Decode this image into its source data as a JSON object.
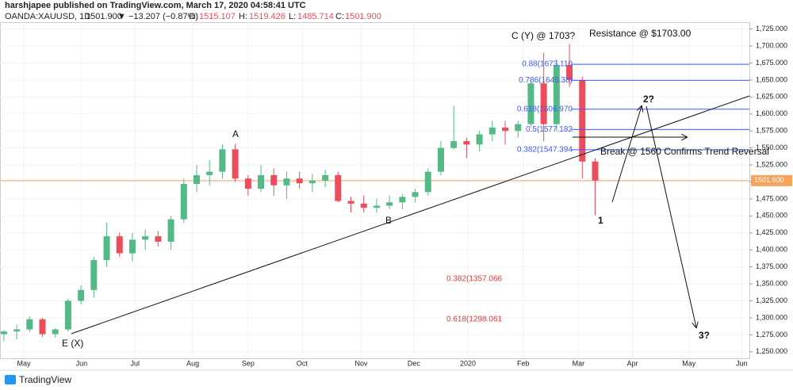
{
  "header": {
    "publisher": "harshjapee published on TradingView.com, March 17, 2020 04:58:41 UTC",
    "symbol": "OANDA:XAUUSD, 1D",
    "price": "1501.900",
    "change": "▼ −13.207 (−0.87%)",
    "ohlc": [
      {
        "label": "O:",
        "value": "1515.107"
      },
      {
        "label": "H:",
        "value": "1519.426"
      },
      {
        "label": "L:",
        "value": "1485.714"
      },
      {
        "label": "C:",
        "value": "1501.900"
      }
    ]
  },
  "footer": {
    "brand": "TradingView"
  },
  "chart_data": {
    "type": "candlestick",
    "up_color": "#53b987",
    "down_color": "#eb4d5c",
    "candles": [
      [
        1276,
        1282,
        1266,
        1280
      ],
      [
        1280,
        1290,
        1268,
        1283
      ],
      [
        1283,
        1302,
        1279,
        1298
      ],
      [
        1298,
        1300,
        1272,
        1276
      ],
      [
        1276,
        1285,
        1271,
        1283
      ],
      [
        1283,
        1328,
        1280,
        1325
      ],
      [
        1325,
        1348,
        1320,
        1341
      ],
      [
        1341,
        1390,
        1330,
        1385
      ],
      [
        1385,
        1440,
        1375,
        1420
      ],
      [
        1420,
        1425,
        1390,
        1395
      ],
      [
        1395,
        1425,
        1383,
        1415
      ],
      [
        1415,
        1430,
        1400,
        1420
      ],
      [
        1420,
        1428,
        1405,
        1412
      ],
      [
        1412,
        1450,
        1400,
        1445
      ],
      [
        1445,
        1505,
        1440,
        1497
      ],
      [
        1497,
        1525,
        1485,
        1510
      ],
      [
        1510,
        1532,
        1495,
        1515
      ],
      [
        1515,
        1555,
        1505,
        1548
      ],
      [
        1548,
        1556,
        1500,
        1505
      ],
      [
        1505,
        1510,
        1480,
        1490
      ],
      [
        1490,
        1525,
        1485,
        1510
      ],
      [
        1510,
        1520,
        1480,
        1495
      ],
      [
        1495,
        1515,
        1475,
        1505
      ],
      [
        1505,
        1515,
        1490,
        1498
      ],
      [
        1498,
        1512,
        1485,
        1502
      ],
      [
        1502,
        1518,
        1492,
        1510
      ],
      [
        1510,
        1515,
        1470,
        1472
      ],
      [
        1472,
        1478,
        1455,
        1468
      ],
      [
        1468,
        1480,
        1455,
        1462
      ],
      [
        1462,
        1475,
        1455,
        1465
      ],
      [
        1465,
        1480,
        1460,
        1470
      ],
      [
        1470,
        1482,
        1460,
        1478
      ],
      [
        1478,
        1490,
        1470,
        1485
      ],
      [
        1485,
        1520,
        1480,
        1515
      ],
      [
        1515,
        1560,
        1510,
        1550
      ],
      [
        1550,
        1612,
        1548,
        1560
      ],
      [
        1560,
        1565,
        1535,
        1555
      ],
      [
        1555,
        1575,
        1545,
        1570
      ],
      [
        1570,
        1590,
        1560,
        1580
      ],
      [
        1580,
        1590,
        1555,
        1575
      ],
      [
        1575,
        1590,
        1565,
        1585
      ],
      [
        1585,
        1650,
        1580,
        1645
      ],
      [
        1645,
        1690,
        1560,
        1585
      ],
      [
        1585,
        1680,
        1575,
        1672
      ],
      [
        1672,
        1703,
        1640,
        1650
      ],
      [
        1650,
        1655,
        1505,
        1530
      ],
      [
        1530,
        1535,
        1451,
        1502
      ]
    ],
    "xlim": [
      -0.3,
      58
    ],
    "xticks": [
      {
        "value": 1.55,
        "label": "May"
      },
      {
        "value": 6.05,
        "label": "Jun"
      },
      {
        "value": 10.2,
        "label": "Jul"
      },
      {
        "value": 14.7,
        "label": "Aug"
      },
      {
        "value": 19,
        "label": "Sep"
      },
      {
        "value": 23.2,
        "label": "Oct"
      },
      {
        "value": 27.8,
        "label": "Nov"
      },
      {
        "value": 31.9,
        "label": "Dec"
      },
      {
        "value": 36.1,
        "label": "2020"
      },
      {
        "value": 40.4,
        "label": "Feb"
      },
      {
        "value": 44.7,
        "label": "Mar"
      },
      {
        "value": 48.9,
        "label": "Apr"
      },
      {
        "value": 53.3,
        "label": "May"
      },
      {
        "value": 57.4,
        "label": "Jun"
      }
    ],
    "ylim": [
      1240.5,
      1735
    ],
    "yticks": [
      {
        "value": 1250,
        "label": "1,250.000"
      },
      {
        "value": 1275,
        "label": "1,275.000"
      },
      {
        "value": 1300,
        "label": "1,300.000"
      },
      {
        "value": 1325,
        "label": "1,325.000"
      },
      {
        "value": 1350,
        "label": "1,350.000"
      },
      {
        "value": 1375,
        "label": "1,375.000"
      },
      {
        "value": 1400,
        "label": "1,400.000"
      },
      {
        "value": 1425,
        "label": "1,425.000"
      },
      {
        "value": 1450,
        "label": "1,450.000"
      },
      {
        "value": 1475,
        "label": "1,475.000"
      },
      {
        "value": 1500,
        "label": "1,500.000"
      },
      {
        "value": 1525,
        "label": "1,525.000"
      },
      {
        "value": 1550,
        "label": "1,550.000"
      },
      {
        "value": 1575,
        "label": "1,575.000"
      },
      {
        "value": 1600,
        "label": "1,600.000"
      },
      {
        "value": 1625,
        "label": "1,625.000"
      },
      {
        "value": 1650,
        "label": "1,650.000"
      },
      {
        "value": 1675,
        "label": "1,675.000"
      },
      {
        "value": 1700,
        "label": "1,700.000"
      },
      {
        "value": 1725,
        "label": "1,725.000"
      }
    ],
    "last_price": {
      "value": 1501.9,
      "label": "1501.900",
      "color": "#f7a35c"
    },
    "fib_levels": [
      {
        "value": 1673.11,
        "label": "0.88(1673.110"
      },
      {
        "value": 1649.38,
        "label": "0.786(1649.38)"
      },
      {
        "value": 1606.97,
        "label": "0.618(1606.970"
      },
      {
        "value": 1577.182,
        "label": "0.5(1577.182"
      },
      {
        "value": 1547.394,
        "label": "0.382(1547.394"
      }
    ],
    "fib_color": "#3d5afe",
    "target_levels": [
      {
        "value": 1357.066,
        "label": "0.382(1357.066"
      },
      {
        "value": 1298.061,
        "label": "0.618(1298.061"
      }
    ],
    "target_color": "#e53935",
    "annotations": {
      "c": "C (Y) @ 1703?",
      "resistance": "Resistance @ $1703.00",
      "a": "A",
      "b": "B",
      "e": "E (X)",
      "w1": "1",
      "w2": "2?",
      "w3": "3?",
      "break": "Break @ 1560 Confirms Trend Reversal"
    }
  }
}
